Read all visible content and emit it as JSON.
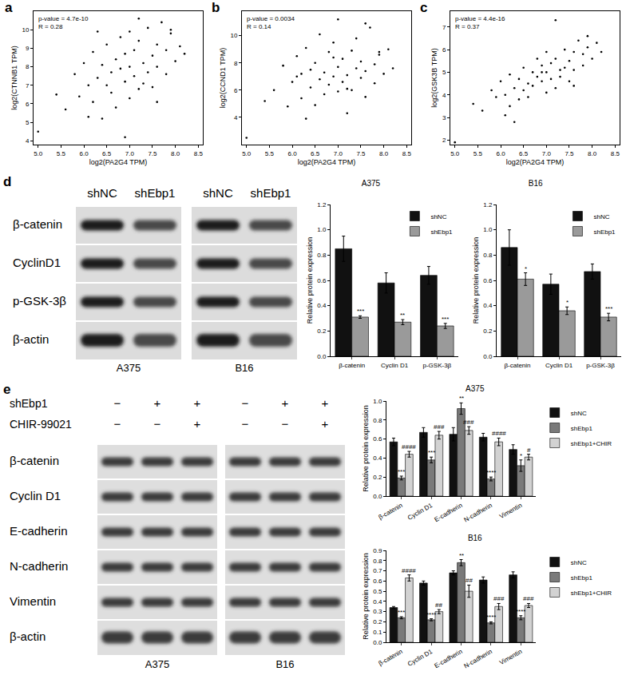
{
  "panel_labels": [
    "a",
    "b",
    "c",
    "d",
    "e"
  ],
  "blots": [
    {
      "lanes": [
        "shNC",
        "shEbp1"
      ],
      "rows": [
        "β-catenin",
        "CyclinD1",
        "p-GSK-3β",
        "β-actin"
      ],
      "groups": [
        "A375",
        "B16"
      ]
    },
    {
      "conditions": [
        {
          "label": "shEbp1",
          "signs": [
            "−",
            "+",
            "+"
          ]
        },
        {
          "label": "CHIR-99021",
          "signs": [
            "−",
            "−",
            "+"
          ]
        }
      ],
      "rows": [
        "β-catenin",
        "Cyclin D1",
        "E-cadherin",
        "N-cadherin",
        "Vimentin",
        "β-actin"
      ],
      "groups": [
        "A375",
        "B16"
      ]
    }
  ],
  "chart_data": [
    {
      "type": "scatter",
      "marker": "circle",
      "color": "#000000",
      "xlabel": "log2(PA2G4 TPM)",
      "ylabel": "log2(CTNNB1 TPM)",
      "annotations": [
        "p-value = 4.7e-10",
        "R = 0.28"
      ],
      "xlim": [
        4.9,
        8.6
      ],
      "xticks": [
        {
          "value": 5,
          "label": "5.0"
        },
        5.5,
        {
          "value": 6,
          "label": "6.0"
        },
        6.5,
        {
          "value": 7,
          "label": "7.0"
        },
        7.5,
        {
          "value": 8,
          "label": "8.0"
        },
        8.5
      ],
      "ylim": [
        3.8,
        11
      ],
      "yticks": [
        4,
        5,
        6,
        7,
        8,
        9,
        10
      ],
      "x": [
        5.0,
        5.4,
        5.6,
        5.8,
        5.9,
        6.0,
        6.1,
        6.2,
        6.2,
        6.3,
        6.4,
        6.4,
        6.5,
        6.5,
        6.6,
        6.6,
        6.7,
        6.7,
        6.8,
        6.8,
        6.9,
        6.9,
        7.0,
        7.0,
        7.0,
        7.1,
        7.1,
        7.2,
        7.2,
        7.3,
        7.3,
        7.4,
        7.4,
        7.5,
        7.5,
        7.6,
        7.6,
        7.7,
        7.8,
        7.8,
        7.9,
        8.0,
        8.1,
        8.2,
        6.3,
        6.9,
        7.2,
        7.6,
        6.1,
        7.9
      ],
      "y": [
        4.5,
        6.5,
        5.7,
        7.6,
        6.4,
        8.2,
        7.0,
        6.1,
        8.8,
        7.4,
        5.2,
        8.1,
        7.0,
        9.2,
        7.7,
        6.6,
        8.4,
        5.8,
        7.9,
        9.6,
        7.2,
        8.7,
        6.3,
        8.0,
        9.9,
        7.5,
        8.9,
        6.8,
        9.4,
        8.2,
        7.1,
        10.1,
        7.7,
        8.6,
        6.9,
        9.2,
        8.0,
        10.4,
        7.6,
        8.9,
        9.8,
        8.3,
        9.1,
        8.7,
        9.9,
        4.2,
        10.6,
        6.1,
        5.3,
        10.0
      ]
    },
    {
      "type": "scatter",
      "marker": "circle",
      "color": "#000000",
      "xlabel": "log2(PA2G4 TPM)",
      "ylabel": "log2(CCND1 TPM)",
      "annotations": [
        "p-value = 0.0034",
        "R = 0.14"
      ],
      "xlim": [
        4.9,
        8.6
      ],
      "xticks": [
        {
          "value": 5,
          "label": "5.0"
        },
        5.5,
        {
          "value": 6,
          "label": "6.0"
        },
        6.5,
        {
          "value": 7,
          "label": "7.0"
        },
        7.5,
        {
          "value": 8,
          "label": "8.0"
        },
        8.5
      ],
      "ylim": [
        2,
        11.8
      ],
      "yticks": [
        4,
        6,
        8,
        10
      ],
      "x": [
        5.0,
        5.4,
        5.6,
        5.8,
        5.9,
        6.0,
        6.1,
        6.2,
        6.2,
        6.3,
        6.4,
        6.4,
        6.5,
        6.5,
        6.6,
        6.6,
        6.7,
        6.7,
        6.8,
        6.8,
        6.9,
        6.9,
        7.0,
        7.0,
        7.0,
        7.1,
        7.1,
        7.2,
        7.2,
        7.3,
        7.3,
        7.4,
        7.4,
        7.5,
        7.5,
        7.6,
        7.6,
        7.7,
        7.8,
        7.8,
        7.9,
        8.0,
        8.1,
        8.2,
        6.3,
        6.9,
        7.2,
        7.6,
        6.1,
        7.9
      ],
      "y": [
        2.5,
        5.2,
        6.0,
        7.8,
        4.8,
        6.6,
        8.5,
        5.4,
        7.2,
        9.1,
        6.2,
        7.5,
        4.9,
        8.0,
        6.8,
        10.1,
        5.7,
        7.3,
        8.8,
        6.4,
        7.0,
        9.5,
        5.9,
        7.7,
        11.2,
        6.6,
        8.3,
        7.1,
        4.3,
        8.9,
        6.0,
        7.6,
        9.8,
        6.9,
        8.1,
        5.5,
        7.4,
        10.6,
        7.9,
        6.5,
        8.6,
        7.2,
        9.0,
        7.6,
        3.9,
        8.4,
        6.1,
        10.9,
        7.0,
        8.8
      ]
    },
    {
      "type": "scatter",
      "marker": "circle",
      "color": "#000000",
      "xlabel": "log2(PA2G4 TPM)",
      "ylabel": "log2(GSK3B TPM)",
      "annotations": [
        "p-value = 4.4e-16",
        "R = 0.37"
      ],
      "xlim": [
        4.9,
        8.6
      ],
      "xticks": [
        {
          "value": 5,
          "label": "5.0"
        },
        5.5,
        {
          "value": 6,
          "label": "6.0"
        },
        6.5,
        {
          "value": 7,
          "label": "7.0"
        },
        7.5,
        {
          "value": 8,
          "label": "8.0"
        },
        8.5
      ],
      "ylim": [
        1.8,
        7.7
      ],
      "yticks": [
        2,
        3,
        4,
        5,
        6,
        7
      ],
      "x": [
        5.0,
        5.4,
        5.6,
        5.8,
        5.9,
        6.0,
        6.1,
        6.2,
        6.2,
        6.3,
        6.4,
        6.4,
        6.5,
        6.5,
        6.6,
        6.6,
        6.7,
        6.7,
        6.8,
        6.8,
        6.9,
        6.9,
        7.0,
        7.0,
        7.0,
        7.1,
        7.1,
        7.2,
        7.2,
        7.3,
        7.3,
        7.4,
        7.4,
        7.5,
        7.5,
        7.6,
        7.6,
        7.7,
        7.8,
        7.8,
        7.9,
        8.0,
        8.1,
        8.2,
        6.3,
        6.9,
        7.2,
        7.6,
        6.1,
        7.9
      ],
      "y": [
        1.9,
        3.6,
        3.3,
        4.2,
        3.9,
        4.6,
        4.0,
        3.5,
        4.9,
        4.3,
        3.8,
        4.7,
        4.2,
        5.2,
        4.5,
        3.9,
        5.0,
        4.4,
        4.8,
        5.6,
        4.6,
        5.3,
        4.1,
        5.0,
        5.9,
        4.7,
        5.4,
        4.3,
        5.6,
        5.1,
        4.8,
        6.0,
        5.2,
        5.5,
        4.6,
        5.9,
        5.1,
        6.4,
        5.3,
        5.8,
        6.1,
        5.6,
        6.3,
        5.9,
        2.8,
        5.0,
        7.3,
        4.4,
        3.1,
        6.6
      ]
    },
    {
      "type": "bar",
      "title": "A375",
      "ylabel": "Relative protein expression",
      "legend": "top right",
      "categories": [
        "β-catenin",
        "Cyclin D1",
        "p-GSK-3β"
      ],
      "ylim": [
        0,
        1.2
      ],
      "yticks": [
        {
          "value": 0,
          "label": "0.0"
        },
        0.2,
        0.4,
        0.6,
        0.8,
        {
          "value": 1,
          "label": "1.0"
        },
        1.2
      ],
      "series": [
        {
          "name": "shNC",
          "color": "#111111",
          "values": [
            0.85,
            0.58,
            0.64
          ],
          "errors": [
            0.1,
            0.08,
            0.07
          ]
        },
        {
          "name": "shEbp1",
          "color": "#9a9a9a",
          "values": [
            0.31,
            0.27,
            0.24
          ],
          "errors": [
            0.01,
            0.02,
            0.02
          ],
          "significance": [
            "***",
            "**",
            "***"
          ]
        }
      ]
    },
    {
      "type": "bar",
      "title": "B16",
      "ylabel": "Relative protein expression",
      "legend": "top right",
      "categories": [
        "β-catenin",
        "Cyclin D1",
        "p-GSK-3β"
      ],
      "ylim": [
        0,
        1.2
      ],
      "yticks": [
        {
          "value": 0,
          "label": "0.0"
        },
        0.2,
        0.4,
        0.6,
        0.8,
        {
          "value": 1,
          "label": "1.0"
        },
        1.2
      ],
      "series": [
        {
          "name": "shNC",
          "color": "#111111",
          "values": [
            0.86,
            0.57,
            0.67
          ],
          "errors": [
            0.14,
            0.08,
            0.06
          ]
        },
        {
          "name": "shEbp1",
          "color": "#9a9a9a",
          "values": [
            0.61,
            0.36,
            0.31
          ],
          "errors": [
            0.05,
            0.03,
            0.03
          ],
          "significance": [
            "*",
            "*",
            "***"
          ]
        }
      ]
    },
    {
      "type": "bar",
      "title": "A375",
      "ylabel": "Relative protein expression",
      "legend": "right",
      "categories": [
        "β-catenin",
        "Cyclin D1",
        "E-cadherin",
        "N-cadherin",
        "Vimentin"
      ],
      "ylim": [
        0,
        1.0
      ],
      "yticks": [
        {
          "value": 0,
          "label": "0.0"
        },
        0.2,
        0.4,
        0.6,
        0.8,
        {
          "value": 1,
          "label": "1.0"
        }
      ],
      "series": [
        {
          "name": "shNC",
          "color": "#111111",
          "values": [
            0.57,
            0.67,
            0.65,
            0.62,
            0.49
          ],
          "errors": [
            0.04,
            0.05,
            0.07,
            0.04,
            0.05
          ]
        },
        {
          "name": "shEbp1",
          "color": "#7a7a7a",
          "values": [
            0.19,
            0.38,
            0.92,
            0.18,
            0.32
          ],
          "errors": [
            0.02,
            0.03,
            0.06,
            0.02,
            0.06
          ],
          "significance": [
            "***",
            "***",
            "**",
            "****",
            "*"
          ]
        },
        {
          "name": "shEbp1+CHIR",
          "color": "#d2d2d2",
          "values": [
            0.44,
            0.64,
            0.69,
            0.57,
            0.41
          ],
          "errors": [
            0.03,
            0.04,
            0.04,
            0.04,
            0.03
          ],
          "significance": [
            "####",
            "###",
            "###",
            "####",
            "#"
          ]
        }
      ]
    },
    {
      "type": "bar",
      "title": "B16",
      "ylabel": "Relative protein expression",
      "legend": "right",
      "categories": [
        "β-catenin",
        "Cyclin D1",
        "E-cadherin",
        "N-cadherin",
        "Vimentin"
      ],
      "ylim": [
        0,
        0.9
      ],
      "yticks": [
        {
          "value": 0,
          "label": "0.0"
        },
        0.1,
        0.2,
        0.3,
        0.4,
        0.5,
        0.6,
        0.7,
        0.8,
        0.9
      ],
      "series": [
        {
          "name": "shNC",
          "color": "#111111",
          "values": [
            0.34,
            0.58,
            0.68,
            0.61,
            0.66
          ],
          "errors": [
            0.01,
            0.02,
            0.02,
            0.03,
            0.03
          ]
        },
        {
          "name": "shEbp1",
          "color": "#7a7a7a",
          "values": [
            0.24,
            0.22,
            0.78,
            0.19,
            0.24
          ],
          "errors": [
            0.01,
            0.01,
            0.03,
            0.01,
            0.02
          ],
          "significance": [
            "***",
            "****",
            "**",
            "****",
            "****"
          ]
        },
        {
          "name": "shEbp1+CHIR",
          "color": "#d2d2d2",
          "values": [
            0.63,
            0.3,
            0.5,
            0.35,
            0.36
          ],
          "errors": [
            0.03,
            0.02,
            0.06,
            0.03,
            0.02
          ],
          "significance": [
            "####",
            "##",
            "##",
            "###",
            "###"
          ]
        }
      ]
    }
  ]
}
